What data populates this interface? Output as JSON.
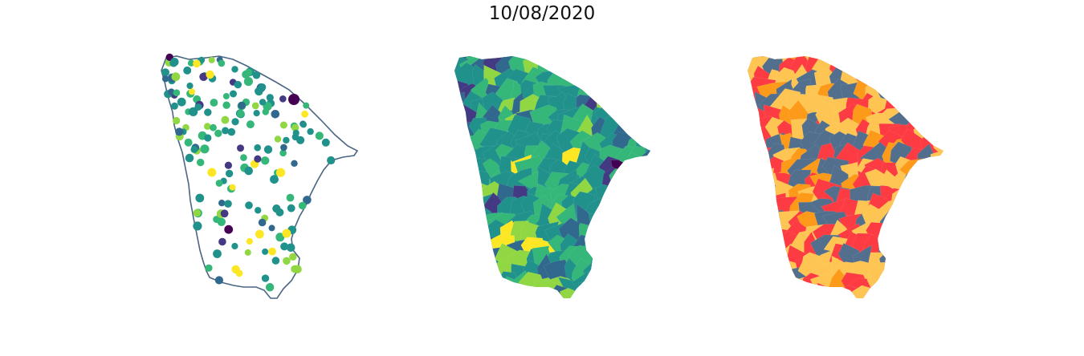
{
  "figure": {
    "title": "10/08/2020"
  },
  "colors": {
    "outline": "#4a6583",
    "viridis": [
      "#440154",
      "#443a83",
      "#31688e",
      "#21918c",
      "#35b779",
      "#90d743",
      "#fde725"
    ],
    "categorical": [
      "#fec553",
      "#fc3c42",
      "#fd9a1a",
      "#52708e"
    ]
  },
  "panels": [
    {
      "name": "point-map",
      "type": "scatter-map"
    },
    {
      "name": "choropleth-map",
      "type": "choropleth"
    },
    {
      "name": "categorical-map",
      "type": "categorical-choropleth"
    }
  ]
}
